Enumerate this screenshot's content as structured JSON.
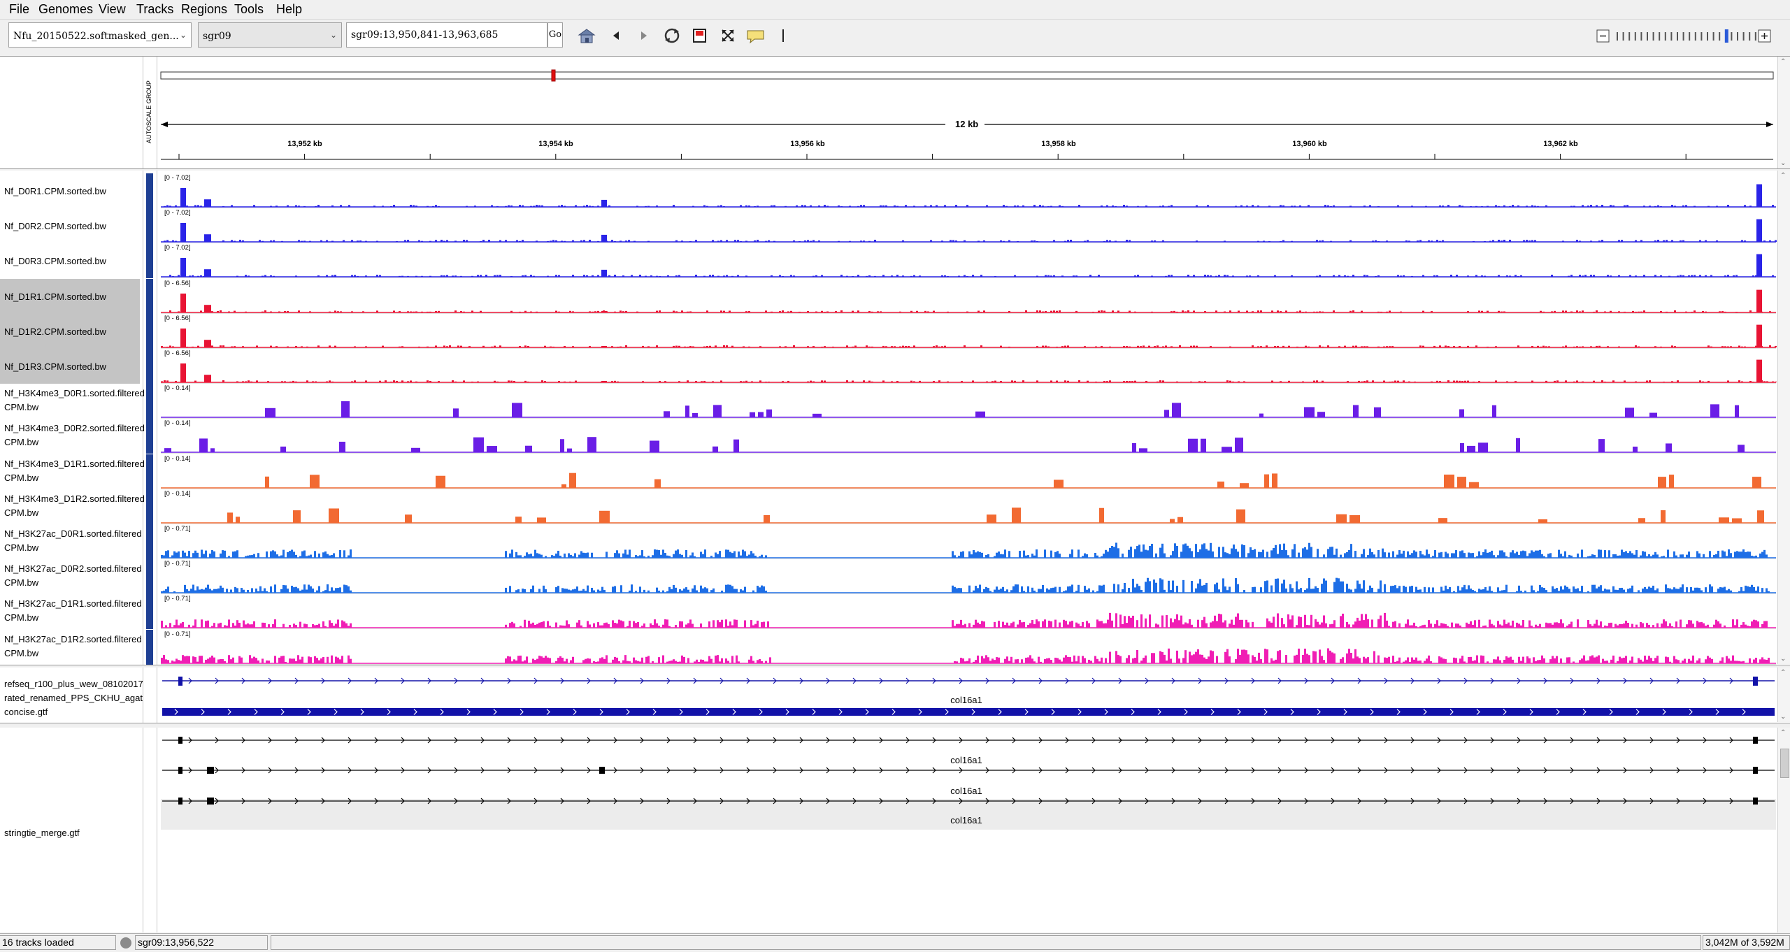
{
  "menu": [
    "File",
    "Genomes",
    "View",
    "Tracks",
    "Regions",
    "Tools",
    "Help"
  ],
  "toolbar": {
    "genome": "Nfu_20150522.softmasked_gen...",
    "chromosome": "sgr09",
    "locus": "sgr09:13,950,841-13,963,685",
    "go_label": "Go"
  },
  "ruler": {
    "span_label": "12 kb",
    "tick_labels": [
      "13,952 kb",
      "13,954 kb",
      "13,956 kb",
      "13,958 kb",
      "13,960 kb",
      "13,962 kb"
    ],
    "autoscale_group_label": "AUTOSCALE GROUP"
  },
  "tracks": [
    {
      "name": "Nf_D0R1.CPM.sorted.bw",
      "range": "[0 - 7.02]",
      "color": "#2a24e8",
      "kind": "rna",
      "seed": 11,
      "selected": false
    },
    {
      "name": "Nf_D0R2.CPM.sorted.bw",
      "range": "[0 - 7.02]",
      "color": "#2a24e8",
      "kind": "rna",
      "seed": 12,
      "selected": false
    },
    {
      "name": "Nf_D0R3.CPM.sorted.bw",
      "range": "[0 - 7.02]",
      "color": "#2a24e8",
      "kind": "rna",
      "seed": 13,
      "selected": false
    },
    {
      "name": "Nf_D1R1.CPM.sorted.bw",
      "range": "[0 - 6.56]",
      "color": "#e81434",
      "kind": "rna",
      "seed": 14,
      "selected": true
    },
    {
      "name": "Nf_D1R2.CPM.sorted.bw",
      "range": "[0 - 6.56]",
      "color": "#e81434",
      "kind": "rna",
      "seed": 15,
      "selected": true
    },
    {
      "name": "Nf_D1R3.CPM.sorted.bw",
      "range": "[0 - 6.56]",
      "color": "#e81434",
      "kind": "rna",
      "seed": 16,
      "selected": true
    },
    {
      "name": "Nf_H3K4me3_D0R1.sorted.filtered CPM.bw",
      "range": "[0 - 0.14]",
      "color": "#6a1ee6",
      "kind": "sparse",
      "seed": 21,
      "selected": false
    },
    {
      "name": "Nf_H3K4me3_D0R2.sorted.filtered CPM.bw",
      "range": "[0 - 0.14]",
      "color": "#6a1ee6",
      "kind": "sparse",
      "seed": 22,
      "selected": false
    },
    {
      "name": "Nf_H3K4me3_D1R1.sorted.filtered CPM.bw",
      "range": "[0 - 0.14]",
      "color": "#f26a32",
      "kind": "sparse",
      "seed": 23,
      "selected": false
    },
    {
      "name": "Nf_H3K4me3_D1R2.sorted.filtered CPM.bw",
      "range": "[0 - 0.14]",
      "color": "#f26a32",
      "kind": "sparse",
      "seed": 24,
      "selected": false
    },
    {
      "name": "Nf_H3K27ac_D0R1.sorted.filtered CPM.bw",
      "range": "[0 - 0.71]",
      "color": "#1e6ee6",
      "kind": "dense",
      "seed": 31,
      "selected": false
    },
    {
      "name": "Nf_H3K27ac_D0R2.sorted.filtered CPM.bw",
      "range": "[0 - 0.71]",
      "color": "#1e6ee6",
      "kind": "dense",
      "seed": 32,
      "selected": false
    },
    {
      "name": "Nf_H3K27ac_D1R1.sorted.filtered CPM.bw",
      "range": "[0 - 0.71]",
      "color": "#f01eb4",
      "kind": "dense",
      "seed": 33,
      "selected": false
    },
    {
      "name": "Nf_H3K27ac_D1R2.sorted.filtered CPM.bw",
      "range": "[0 - 0.71]",
      "color": "#f01eb4",
      "kind": "dense",
      "seed": 34,
      "selected": false
    }
  ],
  "feature_tracks": {
    "refseq_name": "refseq_r100_plus_wew_08102017 rated_renamed_PPS_CKHU_agat concise.gtf",
    "refseq_gene": "col16a1",
    "stringtie_name": "stringtie_merge.gtf",
    "stringtie_genes": [
      "col16a1",
      "col16a1",
      "col16a1"
    ]
  },
  "status": {
    "tracks_loaded": "16 tracks loaded",
    "position": "sgr09:13,956,522",
    "memory": "3,042M of 3,592M"
  },
  "colors": {
    "attribute_column": "#1e3f93",
    "refseq_gene": "#1212a8",
    "selected_name_bg": "#c4c4c4"
  }
}
